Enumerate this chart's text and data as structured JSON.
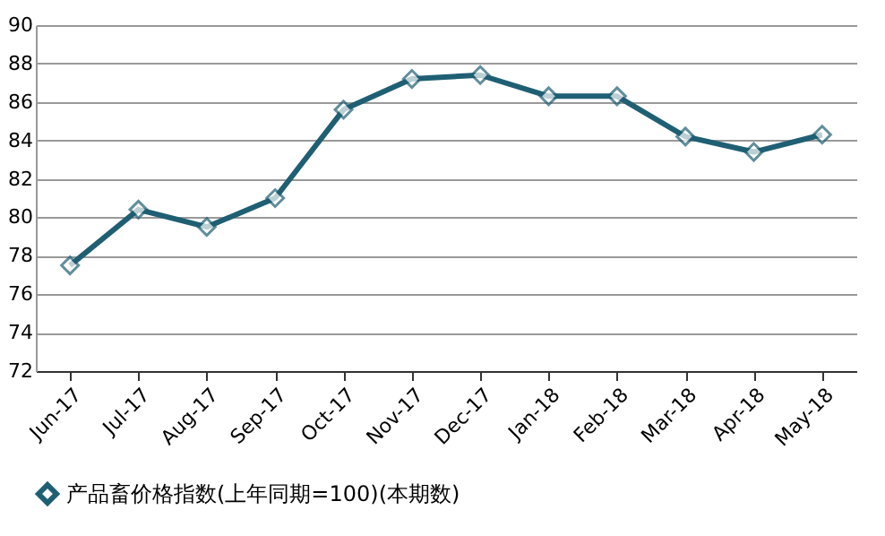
{
  "chart_data": {
    "type": "line",
    "categories": [
      "Jun-17",
      "Jul-17",
      "Aug-17",
      "Sep-17",
      "Oct-17",
      "Nov-17",
      "Dec-17",
      "Jan-18",
      "Feb-18",
      "Mar-18",
      "Apr-18",
      "May-18"
    ],
    "series": [
      {
        "name": "产品畜价格指数(上年同期=100)(本期数)",
        "color": "#1f5f73",
        "values": [
          77.5,
          80.4,
          79.5,
          81.0,
          85.6,
          87.2,
          87.4,
          86.3,
          86.3,
          84.2,
          83.4,
          84.3
        ]
      }
    ],
    "ylim": [
      72,
      90
    ],
    "yticks": [
      72,
      74,
      76,
      78,
      80,
      82,
      84,
      86,
      88,
      90
    ],
    "grid": "y",
    "legend": "bottom",
    "marker": "diamond",
    "line_style": "solid"
  }
}
